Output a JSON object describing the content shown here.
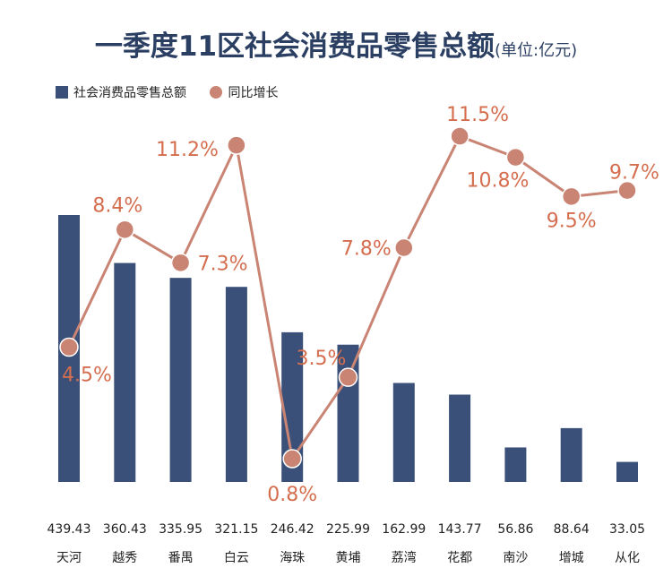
{
  "title": "一季度11区社会消费品零售总额",
  "unit": "(单位:亿元)",
  "colors": {
    "bar": "#3a5078",
    "line": "#c98474",
    "line_label": "#d46e4f",
    "title": "#2b3f63"
  },
  "chart_data": {
    "type": "bar",
    "title": "一季度11区社会消费品零售总额",
    "xlabel": "",
    "ylabel": "",
    "categories": [
      "天河",
      "越秀",
      "番禺",
      "白云",
      "海珠",
      "黄埔",
      "荔湾",
      "花都",
      "南沙",
      "增城",
      "从化"
    ],
    "series": [
      {
        "name": "社会消费品零售总额",
        "type": "bar",
        "values": [
          439.43,
          360.43,
          335.95,
          321.15,
          246.42,
          225.99,
          162.99,
          143.77,
          56.86,
          88.64,
          33.05
        ],
        "labels": [
          "439.43",
          "360.43",
          "335.95",
          "321.15",
          "246.42",
          "225.99",
          "162.99",
          "143.77",
          "56.86",
          "88.64",
          "33.05"
        ]
      },
      {
        "name": "同比增长",
        "type": "line",
        "values": [
          4.5,
          8.4,
          7.3,
          11.2,
          0.8,
          3.5,
          7.8,
          11.5,
          10.8,
          9.5,
          9.7
        ],
        "labels": [
          "4.5%",
          "8.4%",
          "7.3%",
          "11.2%",
          "0.8%",
          "3.5%",
          "7.8%",
          "11.5%",
          "10.8%",
          "9.5%",
          "9.7%"
        ]
      }
    ],
    "legend": "top-left",
    "grid": false
  }
}
